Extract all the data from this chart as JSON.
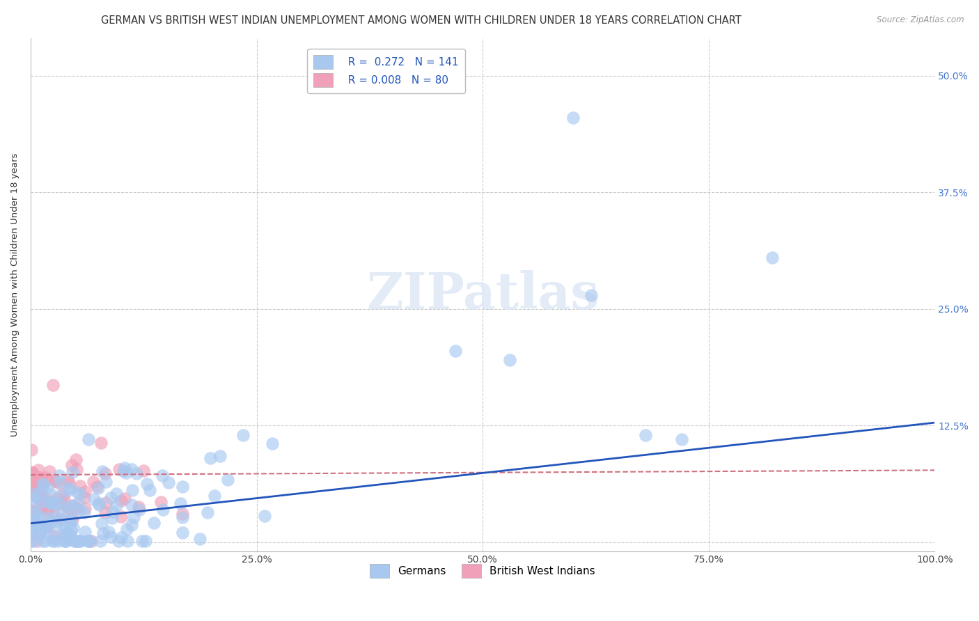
{
  "title": "GERMAN VS BRITISH WEST INDIAN UNEMPLOYMENT AMONG WOMEN WITH CHILDREN UNDER 18 YEARS CORRELATION CHART",
  "source": "Source: ZipAtlas.com",
  "ylabel": "Unemployment Among Women with Children Under 18 years",
  "xlim": [
    0.0,
    1.0
  ],
  "ylim": [
    -0.01,
    0.54
  ],
  "xticks": [
    0.0,
    0.25,
    0.5,
    0.75,
    1.0
  ],
  "xticklabels": [
    "0.0%",
    "25.0%",
    "50.0%",
    "75.0%",
    "100.0%"
  ],
  "yticks": [
    0.0,
    0.125,
    0.25,
    0.375,
    0.5
  ],
  "yticklabels": [
    "",
    "12.5%",
    "25.0%",
    "37.5%",
    "50.0%"
  ],
  "german_R": 0.272,
  "german_N": 141,
  "bwi_R": 0.008,
  "bwi_N": 80,
  "german_color": "#A8C8F0",
  "bwi_color": "#F0A0B8",
  "german_line_color": "#2255BB",
  "bwi_line_color": "#D07080",
  "background_color": "#FFFFFF",
  "grid_color": "#CCCCCC",
  "title_fontsize": 10.5,
  "axis_label_fontsize": 9.5,
  "tick_fontsize": 10,
  "legend_fontsize": 11
}
